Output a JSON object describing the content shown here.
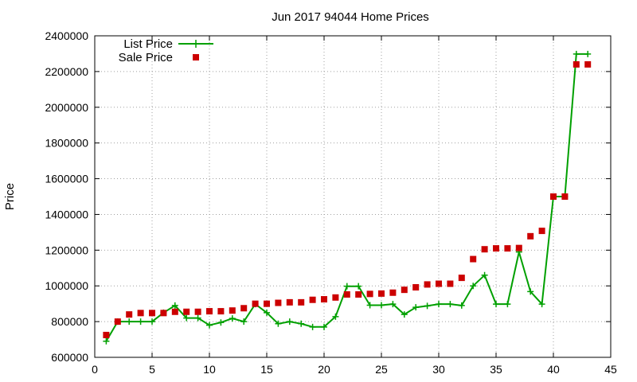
{
  "chart_data": {
    "type": "line",
    "title": "Jun 2017 94044 Home Prices",
    "xlabel": "",
    "ylabel": "Price",
    "xlim": [
      0,
      45
    ],
    "ylim": [
      600000,
      2400000
    ],
    "xticks": [
      0,
      5,
      10,
      15,
      20,
      25,
      30,
      35,
      40,
      45
    ],
    "yticks": [
      600000,
      800000,
      1000000,
      1200000,
      1400000,
      1600000,
      1800000,
      2000000,
      2200000,
      2400000
    ],
    "grid": true,
    "legend_position": "top-left",
    "series": [
      {
        "name": "List Price",
        "style": "line-with-plus-markers",
        "color": "#00a000",
        "x": [
          1,
          2,
          3,
          4,
          5,
          6,
          7,
          8,
          9,
          10,
          11,
          12,
          13,
          14,
          15,
          16,
          17,
          18,
          19,
          20,
          21,
          22,
          23,
          24,
          25,
          26,
          27,
          28,
          29,
          30,
          31,
          32,
          33,
          34,
          35,
          36,
          37,
          38,
          39,
          40,
          41,
          42,
          43
        ],
        "y": [
          690000,
          800000,
          800000,
          800000,
          800000,
          850000,
          890000,
          820000,
          820000,
          780000,
          795000,
          818000,
          800000,
          898000,
          850000,
          788000,
          800000,
          788000,
          770000,
          770000,
          828000,
          998000,
          998000,
          892000,
          892000,
          898000,
          840000,
          880000,
          888000,
          898000,
          898000,
          890000,
          1000000,
          1060000,
          898000,
          898000,
          1190000,
          968000,
          898000,
          1500000,
          1500000,
          2298000,
          2298000
        ]
      },
      {
        "name": "Sale Price",
        "style": "square-markers",
        "color": "#cc0000",
        "x": [
          1,
          2,
          3,
          4,
          5,
          6,
          7,
          8,
          9,
          10,
          11,
          12,
          13,
          14,
          15,
          16,
          17,
          18,
          19,
          20,
          21,
          22,
          23,
          24,
          25,
          26,
          27,
          28,
          29,
          30,
          31,
          32,
          33,
          34,
          35,
          36,
          37,
          38,
          39,
          40,
          41,
          42,
          43
        ],
        "y": [
          725000,
          800000,
          840000,
          848000,
          848000,
          848000,
          855000,
          855000,
          855000,
          858000,
          858000,
          862000,
          875000,
          900000,
          900000,
          905000,
          908000,
          908000,
          922000,
          925000,
          935000,
          952000,
          952000,
          955000,
          957000,
          962000,
          978000,
          992000,
          1008000,
          1012000,
          1012000,
          1045000,
          1150000,
          1205000,
          1210000,
          1210000,
          1212000,
          1278000,
          1308000,
          1500000,
          1500000,
          2240000,
          2240000
        ]
      }
    ]
  }
}
